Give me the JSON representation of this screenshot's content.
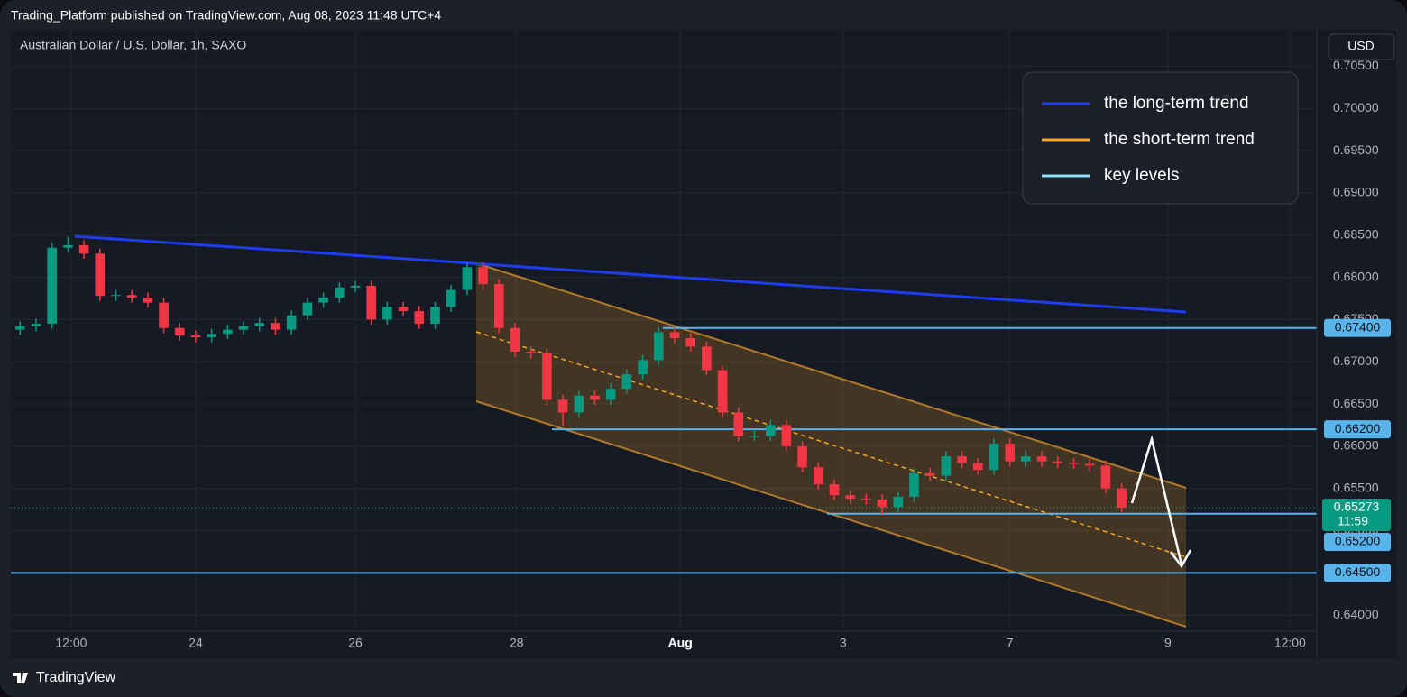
{
  "header": {
    "publisher": "Trading_Platform published on TradingView.com, Aug 08, 2023 11:48 UTC+4",
    "currency": "USD",
    "brand": "TradingView"
  },
  "chart_data": {
    "type": "candlestick",
    "title": "Australian Dollar / U.S. Dollar, 1h, SAXO",
    "up_color": "#089981",
    "down_color": "#f23645",
    "x": [
      -2.2,
      -2,
      -1.8,
      -1.6,
      -1.4,
      -1.2,
      -1,
      -0.8,
      -0.6,
      -0.4,
      -0.2,
      0,
      0.2,
      0.4,
      0.6,
      0.8,
      1,
      1.2,
      1.4,
      1.6,
      1.8,
      2,
      2.2,
      2.4,
      2.6,
      2.8,
      3,
      3.2,
      3.4,
      3.6,
      3.8,
      4,
      4.2,
      4.4,
      4.6,
      4.8,
      5,
      5.2,
      5.4,
      5.6,
      5.8,
      6,
      6.2,
      6.4,
      6.6,
      6.8,
      7,
      7.2,
      7.4,
      7.6,
      7.8,
      8,
      8.2,
      8.4,
      8.6,
      8.8,
      9,
      9.2,
      9.4,
      9.6,
      9.8,
      10,
      10.2,
      10.4,
      10.6,
      10.8,
      11,
      11.2,
      11.4,
      11.6
    ],
    "open": [
      0.6738,
      0.6742,
      0.6745,
      0.6835,
      0.6838,
      0.6828,
      0.6778,
      0.6779,
      0.6776,
      0.677,
      0.674,
      0.6731,
      0.6729,
      0.6733,
      0.6738,
      0.6742,
      0.6746,
      0.6738,
      0.6755,
      0.677,
      0.6776,
      0.6788,
      0.679,
      0.675,
      0.6765,
      0.676,
      0.6745,
      0.6765,
      0.6785,
      0.6812,
      0.6792,
      0.674,
      0.6712,
      0.671,
      0.6655,
      0.664,
      0.666,
      0.6655,
      0.6668,
      0.6685,
      0.6702,
      0.6735,
      0.6728,
      0.6718,
      0.669,
      0.664,
      0.6612,
      0.6612,
      0.6625,
      0.66,
      0.6575,
      0.6555,
      0.6542,
      0.6538,
      0.6537,
      0.6528,
      0.654,
      0.6568,
      0.6565,
      0.6588,
      0.658,
      0.6572,
      0.6603,
      0.6582,
      0.6588,
      0.6582,
      0.658,
      0.6579,
      0.6577,
      0.655
    ],
    "high": [
      0.6748,
      0.6751,
      0.6841,
      0.6848,
      0.6844,
      0.6834,
      0.6785,
      0.6785,
      0.6782,
      0.6776,
      0.6746,
      0.6737,
      0.6739,
      0.6744,
      0.6748,
      0.6752,
      0.6752,
      0.6761,
      0.6776,
      0.6782,
      0.6794,
      0.6796,
      0.6796,
      0.6771,
      0.6771,
      0.6766,
      0.6771,
      0.6791,
      0.6818,
      0.6818,
      0.6798,
      0.6746,
      0.6718,
      0.6716,
      0.6661,
      0.6666,
      0.6666,
      0.6674,
      0.6691,
      0.6708,
      0.6741,
      0.6741,
      0.6734,
      0.6724,
      0.6696,
      0.6646,
      0.6618,
      0.6631,
      0.6631,
      0.6606,
      0.6581,
      0.6561,
      0.6548,
      0.6544,
      0.6543,
      0.6546,
      0.6574,
      0.6574,
      0.6594,
      0.6594,
      0.6586,
      0.6609,
      0.6609,
      0.6594,
      0.6594,
      0.6588,
      0.6586,
      0.6585,
      0.6583,
      0.6556
    ],
    "low": [
      0.6732,
      0.6736,
      0.6739,
      0.6829,
      0.6822,
      0.6772,
      0.6772,
      0.677,
      0.6764,
      0.6734,
      0.6725,
      0.6723,
      0.6723,
      0.6727,
      0.6732,
      0.6736,
      0.6732,
      0.6732,
      0.6749,
      0.6764,
      0.677,
      0.6782,
      0.6744,
      0.6744,
      0.6754,
      0.6739,
      0.6739,
      0.6759,
      0.6779,
      0.6786,
      0.6734,
      0.6706,
      0.6704,
      0.6649,
      0.6625,
      0.6634,
      0.6649,
      0.6649,
      0.6662,
      0.6679,
      0.6696,
      0.6722,
      0.6712,
      0.6684,
      0.6634,
      0.6606,
      0.6606,
      0.6606,
      0.6594,
      0.6569,
      0.6549,
      0.6536,
      0.6532,
      0.6531,
      0.6518,
      0.6522,
      0.6534,
      0.6559,
      0.6559,
      0.6574,
      0.6566,
      0.6566,
      0.6576,
      0.6576,
      0.6576,
      0.6574,
      0.6573,
      0.6571,
      0.6544,
      0.6522
    ],
    "close": [
      0.6742,
      0.6745,
      0.6835,
      0.6838,
      0.6828,
      0.6778,
      0.6779,
      0.6776,
      0.677,
      0.674,
      0.6731,
      0.6729,
      0.6733,
      0.6738,
      0.6742,
      0.6746,
      0.6738,
      0.6755,
      0.677,
      0.6776,
      0.6788,
      0.679,
      0.675,
      0.6765,
      0.676,
      0.6745,
      0.6765,
      0.6785,
      0.6812,
      0.6792,
      0.674,
      0.6712,
      0.671,
      0.6655,
      0.664,
      0.666,
      0.6655,
      0.6668,
      0.6685,
      0.6702,
      0.6735,
      0.6728,
      0.6718,
      0.669,
      0.664,
      0.6612,
      0.6612,
      0.6625,
      0.66,
      0.6575,
      0.6555,
      0.6542,
      0.6538,
      0.6537,
      0.6528,
      0.654,
      0.6568,
      0.6565,
      0.6588,
      0.658,
      0.6572,
      0.6603,
      0.6582,
      0.6588,
      0.6582,
      0.658,
      0.6579,
      0.6577,
      0.655,
      0.65273
    ],
    "xlim": [
      -2.316,
      14.045
    ],
    "xticks": [
      {
        "value": -1.56,
        "label": "12:00"
      },
      {
        "value": 0,
        "label": "24"
      },
      {
        "value": 2,
        "label": "26"
      },
      {
        "value": 4.02,
        "label": "28"
      },
      {
        "value": 6.07,
        "label": "Aug"
      },
      {
        "value": 8.11,
        "label": "3"
      },
      {
        "value": 10.2,
        "label": "7"
      },
      {
        "value": 12.18,
        "label": "9"
      },
      {
        "value": 13.71,
        "label": "12:00"
      }
    ],
    "ylim": [
      0.6381,
      0.7091
    ],
    "yticks": [
      {
        "value": 0.64,
        "label": "0.64000"
      },
      {
        "value": 0.645,
        "label": "0.64500"
      },
      {
        "value": 0.65,
        "label": "0.65000"
      },
      {
        "value": 0.655,
        "label": "0.65500"
      },
      {
        "value": 0.66,
        "label": "0.66000"
      },
      {
        "value": 0.665,
        "label": "0.66500"
      },
      {
        "value": 0.67,
        "label": "0.67000"
      },
      {
        "value": 0.675,
        "label": "0.67500"
      },
      {
        "value": 0.68,
        "label": "0.68000"
      },
      {
        "value": 0.685,
        "label": "0.68500"
      },
      {
        "value": 0.69,
        "label": "0.69000"
      },
      {
        "value": 0.695,
        "label": "0.69500"
      },
      {
        "value": 0.7,
        "label": "0.70000"
      },
      {
        "value": 0.705,
        "label": "0.70500"
      }
    ],
    "grid": true,
    "legend": [
      {
        "name": "the long-term trend",
        "color": "#1f3df0"
      },
      {
        "name": "the short-term trend",
        "color": "#f5a623"
      },
      {
        "name": "key levels",
        "color": "#8fe3f5"
      }
    ],
    "level_color": "#5ab4ec",
    "key_levels": [
      {
        "value": 0.674,
        "label": "0.67400"
      },
      {
        "value": 0.662,
        "label": "0.66200"
      },
      {
        "value": 0.652,
        "label": "0.65200"
      },
      {
        "value": 0.645,
        "label": "0.64500"
      }
    ],
    "last_price": 0.65273,
    "countdown": "11:59"
  }
}
